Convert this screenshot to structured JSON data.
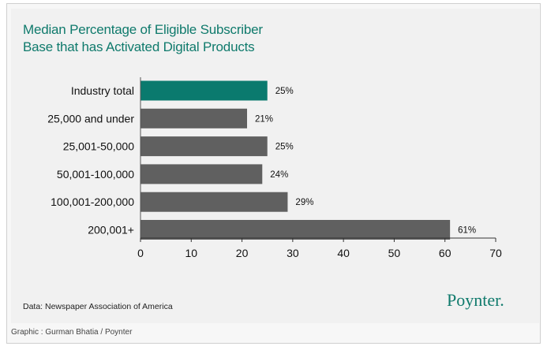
{
  "chart_data": {
    "type": "bar",
    "orientation": "horizontal",
    "title": "Median Percentage of Eligible Subscriber Base that has Activated Digital Products",
    "title_lines": [
      "Median Percentage of Eligible Subscriber",
      "Base that has Activated Digital Products"
    ],
    "categories": [
      "Industry total",
      "25,000 and under",
      "25,001-50,000",
      "50,001-100,000",
      "100,001-200,000",
      "200,001+"
    ],
    "values": [
      25,
      21,
      25,
      24,
      29,
      61
    ],
    "value_labels": [
      "25%",
      "21%",
      "25%",
      "24%",
      "29%",
      "61%"
    ],
    "highlight_index": 0,
    "colors": {
      "highlight": "#0a7a6e",
      "default": "#606060"
    },
    "xlim": [
      0,
      70
    ],
    "xticks": [
      0,
      10,
      20,
      30,
      40,
      50,
      60,
      70
    ],
    "xlabel": "",
    "ylabel": "",
    "grid": false
  },
  "footer": {
    "source": "Data: Newspaper Association of America",
    "logo": "Poynter.",
    "credit": "Graphic : Gurman Bhatia / Poynter"
  }
}
